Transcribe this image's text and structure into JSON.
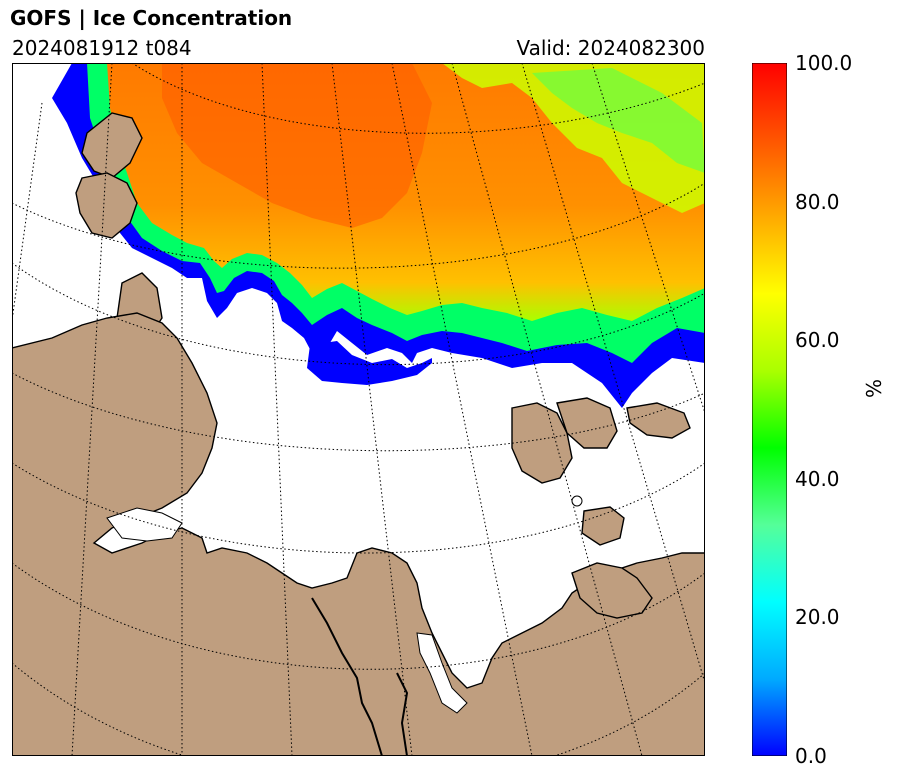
{
  "header": {
    "title": "GOFS  |  Ice Concentration",
    "run": "2024081912 t084",
    "valid": "Valid: 2024082300"
  },
  "colorbar": {
    "unit": "%",
    "min": 0,
    "max": 100,
    "ticks": [
      "0.0",
      "20.0",
      "40.0",
      "60.0",
      "80.0",
      "100.0"
    ],
    "stops": [
      "#0000ff",
      "#00aaff",
      "#00ffff",
      "#55ff99",
      "#00ff00",
      "#aaff00",
      "#ffff00",
      "#ffaa00",
      "#ff5500",
      "#ff0000"
    ]
  },
  "map": {
    "colors": {
      "land": "#bf9e7f",
      "coast": "#000000",
      "water": "#ffffff",
      "ice_edge": "#0000ff",
      "ice_mid": "#00ff66",
      "ice_high": "#ff8c00",
      "ice_peak": "#ff5a00"
    },
    "graticule": "dotted"
  }
}
